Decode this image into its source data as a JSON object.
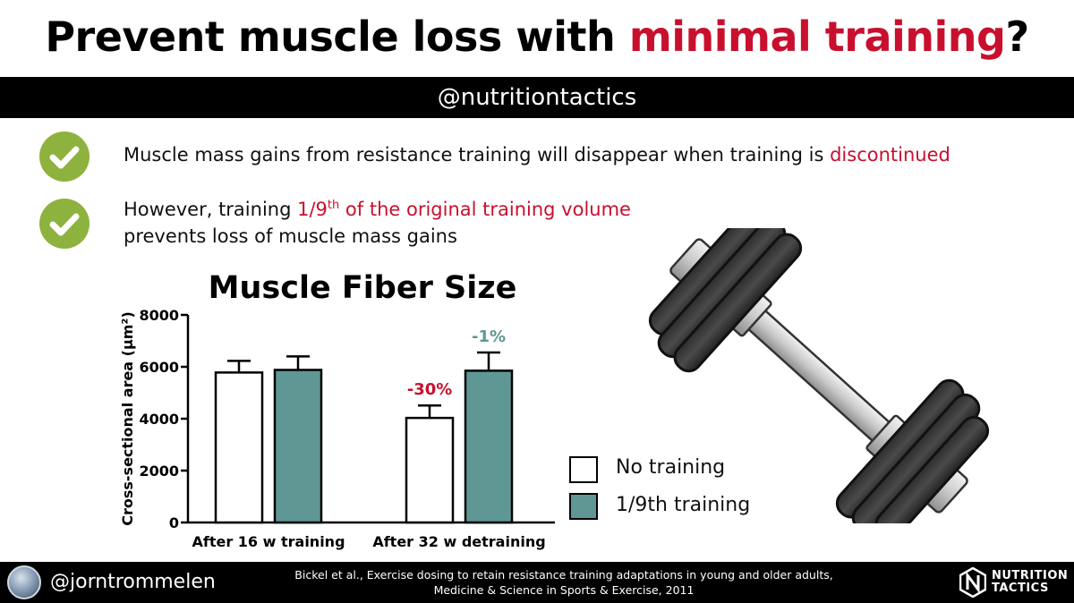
{
  "header": {
    "title_part1": "Prevent muscle loss with ",
    "title_highlight": "minimal training",
    "title_part2": "?",
    "handle": "@nutritiontactics"
  },
  "bullets": [
    {
      "text": "Muscle mass gains from resistance training will disappear when training is ",
      "highlight": "discontinued"
    },
    {
      "line1_pre": "However, training ",
      "highlight_pre": "1/9",
      "highlight_sup": "th",
      "highlight_post": " of the original training volume",
      "line2": "prevents loss of muscle mass gains"
    }
  ],
  "colors": {
    "accent_red": "#c8102e",
    "check_green": "#8db23e",
    "teal": "#5f9794",
    "teal_label": "#5f9794"
  },
  "chart_data": {
    "type": "bar",
    "title": "Muscle Fiber Size",
    "ylabel": "Cross-sectional area (μm²)",
    "xlabel": "",
    "ylim": [
      0,
      8000
    ],
    "yticks": [
      "0",
      "2000",
      "4000",
      "6000",
      "8000"
    ],
    "categories": [
      "After 16 w training",
      "After 32 w detraining"
    ],
    "series": [
      {
        "name": "No training",
        "values": [
          5780,
          4030
        ],
        "errors": [
          450,
          480
        ],
        "color": "#ffffff"
      },
      {
        "name": "1/9th training",
        "values": [
          5880,
          5850
        ],
        "errors": [
          520,
          700
        ],
        "color": "#5f9794"
      }
    ],
    "annotations": [
      {
        "category": 1,
        "series": 0,
        "text": "-30%",
        "color": "#c8102e"
      },
      {
        "category": 1,
        "series": 1,
        "text": "-1%",
        "color": "#5f9794"
      }
    ],
    "legend": "right"
  },
  "footer": {
    "handle": "@jorntrommelen",
    "citation_line1": "Bickel et al., Exercise dosing to retain resistance training adaptations in young and older adults,",
    "citation_line2": "Medicine & Science in Sports & Exercise, 2011",
    "logo_line1": "NUTRITION",
    "logo_line2": "TACTICS"
  },
  "icons": {
    "check": "checkmark-icon",
    "dumbbell": "dumbbell-icon",
    "logo": "nutrition-tactics-logo-icon"
  }
}
